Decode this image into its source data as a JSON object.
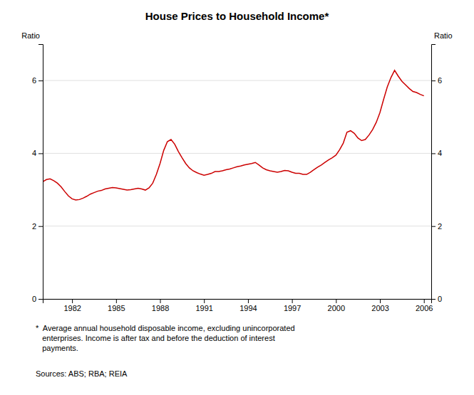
{
  "chart_data": {
    "type": "line",
    "title": "House Prices to Household Income*",
    "ylabel": "Ratio",
    "y2label": "Ratio",
    "color": "#cc0000",
    "grid": true,
    "xlim": [
      1980.0,
      2006.5
    ],
    "xticks": [
      1982,
      1985,
      1988,
      1991,
      1994,
      1997,
      2000,
      2003,
      2006
    ],
    "ylim": [
      0,
      7
    ],
    "yticks": [
      0,
      2,
      4,
      6
    ],
    "y2lim": [
      0,
      7
    ],
    "y2ticks": [
      0,
      2,
      4,
      6
    ],
    "notes": [
      "*  Average annual household disposable income, excluding unincorporated",
      "   enterprises. Income is after tax and before the deduction of interest",
      "   payments."
    ],
    "sources": "Sources: ABS; RBA; REIA",
    "x": [
      1980.0,
      1980.25,
      1980.5,
      1980.75,
      1981.0,
      1981.25,
      1981.5,
      1981.75,
      1982.0,
      1982.25,
      1982.5,
      1982.75,
      1983.0,
      1983.25,
      1983.5,
      1983.75,
      1984.0,
      1984.25,
      1984.5,
      1984.75,
      1985.0,
      1985.25,
      1985.5,
      1985.75,
      1986.0,
      1986.25,
      1986.5,
      1986.75,
      1987.0,
      1987.25,
      1987.5,
      1987.75,
      1988.0,
      1988.25,
      1988.5,
      1988.75,
      1989.0,
      1989.25,
      1989.5,
      1989.75,
      1990.0,
      1990.25,
      1990.5,
      1990.75,
      1991.0,
      1991.25,
      1991.5,
      1991.75,
      1992.0,
      1992.25,
      1992.5,
      1992.75,
      1993.0,
      1993.25,
      1993.5,
      1993.75,
      1994.0,
      1994.25,
      1994.5,
      1994.75,
      1995.0,
      1995.25,
      1995.5,
      1995.75,
      1996.0,
      1996.25,
      1996.5,
      1996.75,
      1997.0,
      1997.25,
      1997.5,
      1997.75,
      1998.0,
      1998.25,
      1998.5,
      1998.75,
      1999.0,
      1999.25,
      1999.5,
      1999.75,
      2000.0,
      2000.25,
      2000.5,
      2000.75,
      2001.0,
      2001.25,
      2001.5,
      2001.75,
      2002.0,
      2002.25,
      2002.5,
      2002.75,
      2003.0,
      2003.25,
      2003.5,
      2003.75,
      2004.0,
      2004.25,
      2004.5,
      2004.75,
      2005.0,
      2005.25,
      2005.5,
      2005.75,
      2006.0
    ],
    "values": [
      3.22,
      3.28,
      3.3,
      3.25,
      3.18,
      3.08,
      2.95,
      2.83,
      2.75,
      2.72,
      2.73,
      2.77,
      2.82,
      2.88,
      2.92,
      2.96,
      2.98,
      3.02,
      3.04,
      3.06,
      3.05,
      3.03,
      3.01,
      2.99,
      3.0,
      3.02,
      3.04,
      3.02,
      2.99,
      3.05,
      3.18,
      3.42,
      3.72,
      4.08,
      4.32,
      4.38,
      4.25,
      4.05,
      3.88,
      3.72,
      3.6,
      3.52,
      3.47,
      3.43,
      3.4,
      3.42,
      3.45,
      3.5,
      3.5,
      3.52,
      3.55,
      3.57,
      3.6,
      3.63,
      3.65,
      3.68,
      3.7,
      3.72,
      3.75,
      3.68,
      3.6,
      3.55,
      3.52,
      3.5,
      3.48,
      3.5,
      3.53,
      3.52,
      3.48,
      3.45,
      3.45,
      3.42,
      3.42,
      3.48,
      3.55,
      3.62,
      3.68,
      3.75,
      3.82,
      3.88,
      3.95,
      4.1,
      4.28,
      4.58,
      4.62,
      4.55,
      4.42,
      4.35,
      4.38,
      4.5,
      4.65,
      4.85,
      5.12,
      5.48,
      5.82,
      6.08,
      6.28,
      6.12,
      5.98,
      5.88,
      5.78,
      5.7,
      5.67,
      5.62,
      5.58
    ]
  }
}
